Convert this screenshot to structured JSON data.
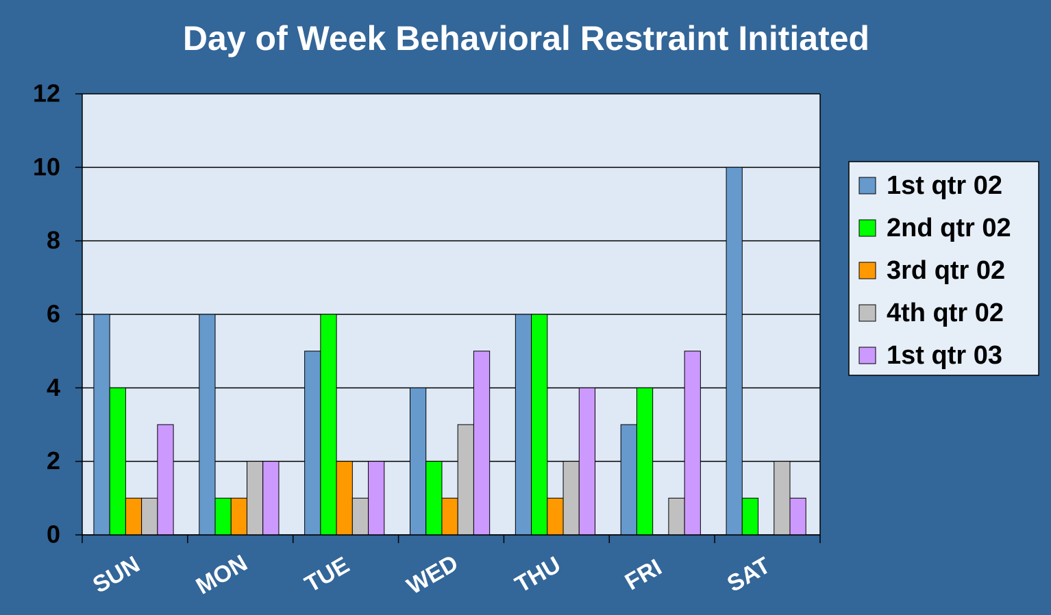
{
  "chart_data": {
    "type": "bar",
    "title": "Day of Week Behavioral Restraint Initiated",
    "categories": [
      "SUN",
      "MON",
      "TUE",
      "WED",
      "THU",
      "FRI",
      "SAT"
    ],
    "series": [
      {
        "name": "1st qtr 02",
        "color": "#6699cc",
        "values": [
          6,
          6,
          5,
          4,
          6,
          3,
          10
        ]
      },
      {
        "name": "2nd qtr 02",
        "color": "#00ff00",
        "values": [
          4,
          1,
          6,
          2,
          6,
          4,
          1
        ]
      },
      {
        "name": "3rd qtr 02",
        "color": "#ff9900",
        "values": [
          1,
          1,
          2,
          1,
          1,
          0,
          0
        ]
      },
      {
        "name": "4th qtr 02",
        "color": "#c0c0c0",
        "values": [
          1,
          2,
          1,
          3,
          2,
          1,
          2
        ]
      },
      {
        "name": "1st qtr 03",
        "color": "#cc99ff",
        "values": [
          3,
          2,
          2,
          5,
          4,
          5,
          1
        ]
      }
    ],
    "ylim": [
      0,
      12
    ],
    "yticks": [
      0,
      2,
      4,
      6,
      8,
      10,
      12
    ],
    "grid": true,
    "legend": "right"
  }
}
